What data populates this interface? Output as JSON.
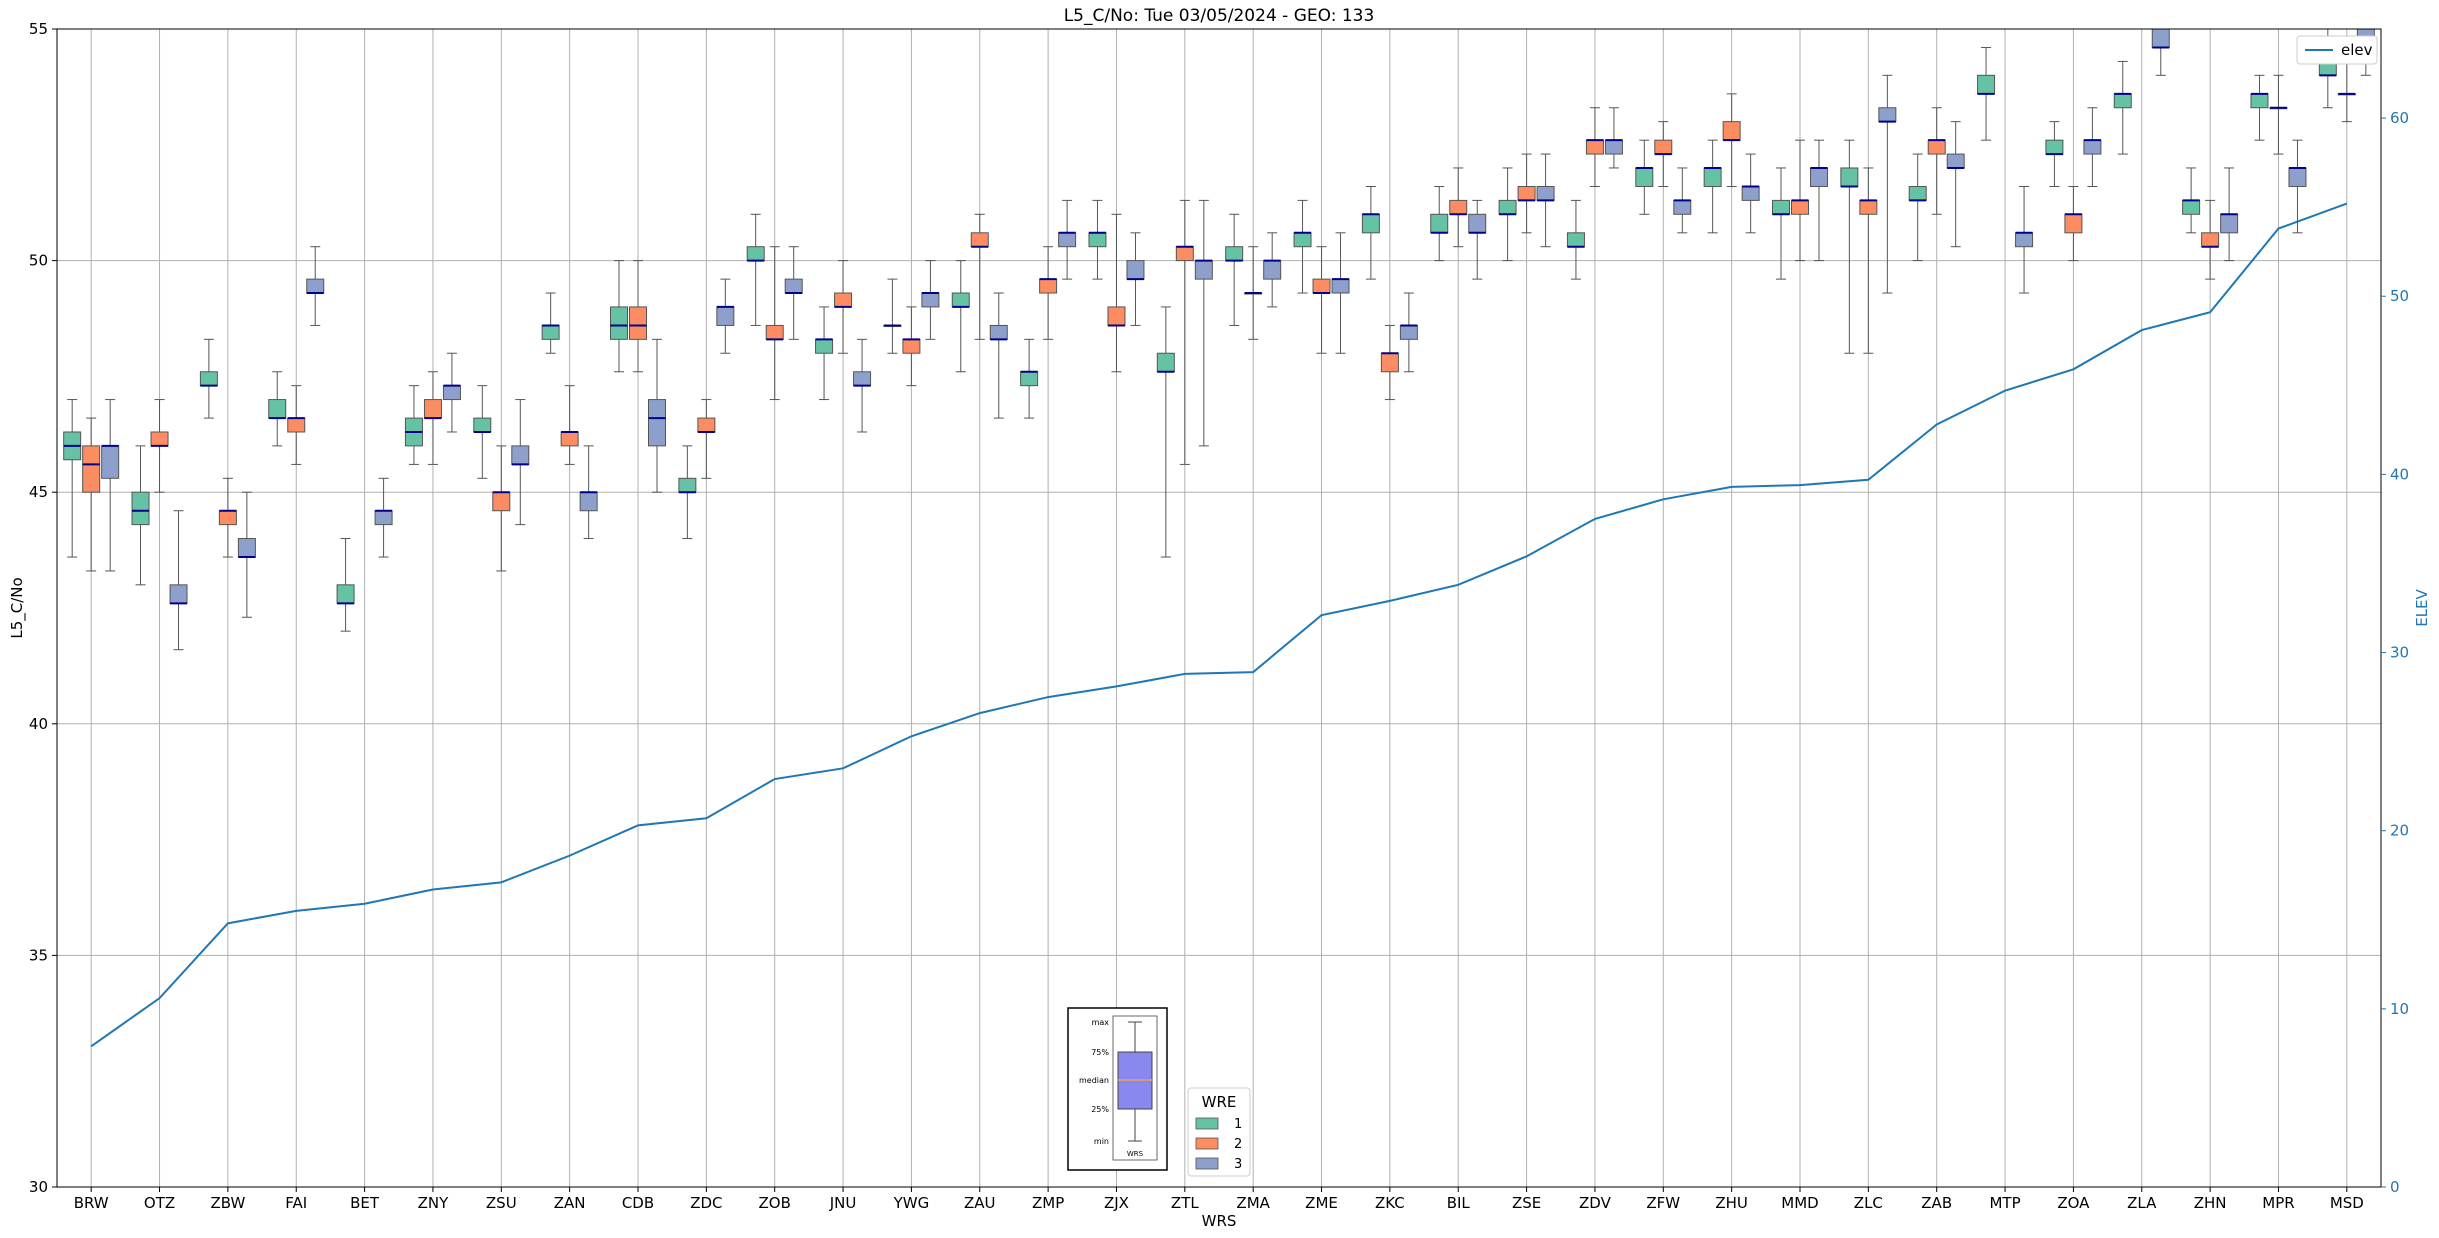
{
  "chart_data": {
    "type": "box",
    "title": "L5_C/No: Tue 03/05/2024 - GEO: 133",
    "xlabel": "WRS",
    "ylabel": "L5_C/No",
    "y2label": "ELEV",
    "ylim": [
      30,
      55
    ],
    "y2lim": [
      0,
      65
    ],
    "yticks": [
      30,
      35,
      40,
      45,
      50,
      55
    ],
    "y2ticks": [
      0,
      10,
      20,
      30,
      40,
      50,
      60
    ],
    "grid": true,
    "categories": [
      "BRW",
      "OTZ",
      "ZBW",
      "FAI",
      "BET",
      "ZNY",
      "ZSU",
      "ZAN",
      "CDB",
      "ZDC",
      "ZOB",
      "JNU",
      "YWG",
      "ZAU",
      "ZMP",
      "ZJX",
      "ZTL",
      "ZMA",
      "ZME",
      "ZKC",
      "BIL",
      "ZSE",
      "ZDV",
      "ZFW",
      "ZHU",
      "MMD",
      "ZLC",
      "ZAB",
      "MTP",
      "ZOA",
      "ZLA",
      "ZHN",
      "MPR",
      "MSD"
    ],
    "legend": {
      "title": "WRE",
      "placement": "bottom-center",
      "entries": [
        {
          "name": "1",
          "color": "#66c2a5"
        },
        {
          "name": "2",
          "color": "#fc8d62"
        },
        {
          "name": "3",
          "color": "#8da0cb"
        }
      ]
    },
    "line_legend": {
      "name": "elev",
      "color": "#1f77b4",
      "placement": "top-right"
    },
    "box_key": {
      "labels": [
        "max",
        "75%",
        "median",
        "25%",
        "min"
      ],
      "xlabel": "WRS"
    },
    "elev": [
      7.9,
      10.6,
      14.8,
      15.5,
      15.9,
      16.7,
      17.1,
      18.6,
      20.3,
      20.7,
      22.9,
      23.5,
      25.3,
      26.6,
      27.5,
      28.1,
      28.8,
      28.9,
      32.1,
      32.9,
      33.8,
      35.4,
      37.5,
      38.6,
      39.3,
      39.4,
      39.7,
      42.8,
      44.7,
      45.9,
      48.1,
      49.1,
      53.8,
      55.2
    ],
    "boxes": [
      {
        "cat": "BRW",
        "wre": "1",
        "min": 43.6,
        "q1": 45.7,
        "median": 46.0,
        "q3": 46.3,
        "max": 47.0
      },
      {
        "cat": "BRW",
        "wre": "2",
        "min": 43.3,
        "q1": 45.0,
        "median": 45.6,
        "q3": 46.0,
        "max": 46.6
      },
      {
        "cat": "BRW",
        "wre": "3",
        "min": 43.3,
        "q1": 45.3,
        "median": 46.0,
        "q3": 46.0,
        "max": 47.0
      },
      {
        "cat": "OTZ",
        "wre": "1",
        "min": 43.0,
        "q1": 44.3,
        "median": 44.6,
        "q3": 45.0,
        "max": 46.0
      },
      {
        "cat": "OTZ",
        "wre": "2",
        "min": 45.0,
        "q1": 46.0,
        "median": 46.0,
        "q3": 46.3,
        "max": 47.0
      },
      {
        "cat": "OTZ",
        "wre": "3",
        "min": 41.6,
        "q1": 42.6,
        "median": 42.6,
        "q3": 43.0,
        "max": 44.6
      },
      {
        "cat": "ZBW",
        "wre": "1",
        "min": 46.6,
        "q1": 47.3,
        "median": 47.3,
        "q3": 47.6,
        "max": 48.3
      },
      {
        "cat": "ZBW",
        "wre": "2",
        "min": 43.6,
        "q1": 44.3,
        "median": 44.6,
        "q3": 44.6,
        "max": 45.3
      },
      {
        "cat": "ZBW",
        "wre": "3",
        "min": 42.3,
        "q1": 43.6,
        "median": 43.6,
        "q3": 44.0,
        "max": 45.0
      },
      {
        "cat": "FAI",
        "wre": "1",
        "min": 46.0,
        "q1": 46.6,
        "median": 46.6,
        "q3": 47.0,
        "max": 47.6
      },
      {
        "cat": "FAI",
        "wre": "2",
        "min": 45.6,
        "q1": 46.3,
        "median": 46.6,
        "q3": 46.6,
        "max": 47.3
      },
      {
        "cat": "FAI",
        "wre": "3",
        "min": 48.6,
        "q1": 49.3,
        "median": 49.3,
        "q3": 49.6,
        "max": 50.3
      },
      {
        "cat": "BET",
        "wre": "1",
        "min": 42.0,
        "q1": 42.6,
        "median": 42.6,
        "q3": 43.0,
        "max": 44.0
      },
      {
        "cat": "BET",
        "wre": "3",
        "min": 43.6,
        "q1": 44.3,
        "median": 44.6,
        "q3": 44.6,
        "max": 45.3
      },
      {
        "cat": "ZNY",
        "wre": "1",
        "min": 45.6,
        "q1": 46.0,
        "median": 46.3,
        "q3": 46.6,
        "max": 47.3
      },
      {
        "cat": "ZNY",
        "wre": "2",
        "min": 45.6,
        "q1": 46.6,
        "median": 46.6,
        "q3": 47.0,
        "max": 47.6
      },
      {
        "cat": "ZNY",
        "wre": "3",
        "min": 46.3,
        "q1": 47.0,
        "median": 47.3,
        "q3": 47.3,
        "max": 48.0
      },
      {
        "cat": "ZSU",
        "wre": "1",
        "min": 45.3,
        "q1": 46.3,
        "median": 46.3,
        "q3": 46.6,
        "max": 47.3
      },
      {
        "cat": "ZSU",
        "wre": "2",
        "min": 43.3,
        "q1": 44.6,
        "median": 45.0,
        "q3": 45.0,
        "max": 46.0
      },
      {
        "cat": "ZSU",
        "wre": "3",
        "min": 44.3,
        "q1": 45.6,
        "median": 45.6,
        "q3": 46.0,
        "max": 47.0
      },
      {
        "cat": "ZAN",
        "wre": "1",
        "min": 48.0,
        "q1": 48.3,
        "median": 48.6,
        "q3": 48.6,
        "max": 49.3
      },
      {
        "cat": "ZAN",
        "wre": "2",
        "min": 45.6,
        "q1": 46.0,
        "median": 46.3,
        "q3": 46.3,
        "max": 47.3
      },
      {
        "cat": "ZAN",
        "wre": "3",
        "min": 44.0,
        "q1": 44.6,
        "median": 45.0,
        "q3": 45.0,
        "max": 46.0
      },
      {
        "cat": "CDB",
        "wre": "1",
        "min": 47.6,
        "q1": 48.3,
        "median": 48.6,
        "q3": 49.0,
        "max": 50.0
      },
      {
        "cat": "CDB",
        "wre": "2",
        "min": 47.6,
        "q1": 48.3,
        "median": 48.6,
        "q3": 49.0,
        "max": 50.0
      },
      {
        "cat": "CDB",
        "wre": "3",
        "min": 45.0,
        "q1": 46.0,
        "median": 46.6,
        "q3": 47.0,
        "max": 48.3
      },
      {
        "cat": "ZDC",
        "wre": "1",
        "min": 44.0,
        "q1": 45.0,
        "median": 45.0,
        "q3": 45.3,
        "max": 46.0
      },
      {
        "cat": "ZDC",
        "wre": "2",
        "min": 45.3,
        "q1": 46.3,
        "median": 46.3,
        "q3": 46.6,
        "max": 47.0
      },
      {
        "cat": "ZDC",
        "wre": "3",
        "min": 48.0,
        "q1": 48.6,
        "median": 49.0,
        "q3": 49.0,
        "max": 49.6
      },
      {
        "cat": "ZOB",
        "wre": "1",
        "min": 48.6,
        "q1": 50.0,
        "median": 50.0,
        "q3": 50.3,
        "max": 51.0
      },
      {
        "cat": "ZOB",
        "wre": "2",
        "min": 47.0,
        "q1": 48.3,
        "median": 48.3,
        "q3": 48.6,
        "max": 50.3
      },
      {
        "cat": "ZOB",
        "wre": "3",
        "min": 48.3,
        "q1": 49.3,
        "median": 49.3,
        "q3": 49.6,
        "max": 50.3
      },
      {
        "cat": "JNU",
        "wre": "1",
        "min": 47.0,
        "q1": 48.0,
        "median": 48.3,
        "q3": 48.3,
        "max": 49.0
      },
      {
        "cat": "JNU",
        "wre": "2",
        "min": 48.0,
        "q1": 49.0,
        "median": 49.0,
        "q3": 49.3,
        "max": 50.0
      },
      {
        "cat": "JNU",
        "wre": "3",
        "min": 46.3,
        "q1": 47.3,
        "median": 47.3,
        "q3": 47.6,
        "max": 48.3
      },
      {
        "cat": "YWG",
        "wre": "1",
        "min": 48.0,
        "q1": 48.6,
        "median": 48.6,
        "q3": 48.6,
        "max": 49.6
      },
      {
        "cat": "YWG",
        "wre": "2",
        "min": 47.3,
        "q1": 48.0,
        "median": 48.3,
        "q3": 48.3,
        "max": 49.0
      },
      {
        "cat": "YWG",
        "wre": "3",
        "min": 48.3,
        "q1": 49.0,
        "median": 49.3,
        "q3": 49.3,
        "max": 50.0
      },
      {
        "cat": "ZAU",
        "wre": "1",
        "min": 47.6,
        "q1": 49.0,
        "median": 49.0,
        "q3": 49.3,
        "max": 50.0
      },
      {
        "cat": "ZAU",
        "wre": "2",
        "min": 48.3,
        "q1": 50.3,
        "median": 50.3,
        "q3": 50.6,
        "max": 51.0
      },
      {
        "cat": "ZAU",
        "wre": "3",
        "min": 46.6,
        "q1": 48.3,
        "median": 48.3,
        "q3": 48.6,
        "max": 49.3
      },
      {
        "cat": "ZMP",
        "wre": "1",
        "min": 46.6,
        "q1": 47.3,
        "median": 47.6,
        "q3": 47.6,
        "max": 48.3
      },
      {
        "cat": "ZMP",
        "wre": "2",
        "min": 48.3,
        "q1": 49.3,
        "median": 49.6,
        "q3": 49.6,
        "max": 50.3
      },
      {
        "cat": "ZMP",
        "wre": "3",
        "min": 49.6,
        "q1": 50.3,
        "median": 50.6,
        "q3": 50.6,
        "max": 51.3
      },
      {
        "cat": "ZJX",
        "wre": "1",
        "min": 49.6,
        "q1": 50.3,
        "median": 50.6,
        "q3": 50.6,
        "max": 51.3
      },
      {
        "cat": "ZJX",
        "wre": "2",
        "min": 47.6,
        "q1": 48.6,
        "median": 48.6,
        "q3": 49.0,
        "max": 51.0
      },
      {
        "cat": "ZJX",
        "wre": "3",
        "min": 48.6,
        "q1": 49.6,
        "median": 49.6,
        "q3": 50.0,
        "max": 50.6
      },
      {
        "cat": "ZTL",
        "wre": "1",
        "min": 43.6,
        "q1": 47.6,
        "median": 47.6,
        "q3": 48.0,
        "max": 49.0
      },
      {
        "cat": "ZTL",
        "wre": "2",
        "min": 45.6,
        "q1": 50.0,
        "median": 50.3,
        "q3": 50.3,
        "max": 51.3
      },
      {
        "cat": "ZTL",
        "wre": "3",
        "min": 46.0,
        "q1": 49.6,
        "median": 50.0,
        "q3": 50.0,
        "max": 51.3
      },
      {
        "cat": "ZMA",
        "wre": "1",
        "min": 48.6,
        "q1": 50.0,
        "median": 50.0,
        "q3": 50.3,
        "max": 51.0
      },
      {
        "cat": "ZMA",
        "wre": "2",
        "min": 48.3,
        "q1": 49.3,
        "median": 49.3,
        "q3": 49.3,
        "max": 50.3
      },
      {
        "cat": "ZMA",
        "wre": "3",
        "min": 49.0,
        "q1": 49.6,
        "median": 50.0,
        "q3": 50.0,
        "max": 50.6
      },
      {
        "cat": "ZME",
        "wre": "1",
        "min": 49.3,
        "q1": 50.3,
        "median": 50.6,
        "q3": 50.6,
        "max": 51.3
      },
      {
        "cat": "ZME",
        "wre": "2",
        "min": 48.0,
        "q1": 49.3,
        "median": 49.3,
        "q3": 49.6,
        "max": 50.3
      },
      {
        "cat": "ZME",
        "wre": "3",
        "min": 48.0,
        "q1": 49.3,
        "median": 49.6,
        "q3": 49.6,
        "max": 50.6
      },
      {
        "cat": "ZKC",
        "wre": "1",
        "min": 49.6,
        "q1": 50.6,
        "median": 51.0,
        "q3": 51.0,
        "max": 51.6
      },
      {
        "cat": "ZKC",
        "wre": "2",
        "min": 47.0,
        "q1": 47.6,
        "median": 48.0,
        "q3": 48.0,
        "max": 48.6
      },
      {
        "cat": "ZKC",
        "wre": "3",
        "min": 47.6,
        "q1": 48.3,
        "median": 48.6,
        "q3": 48.6,
        "max": 49.3
      },
      {
        "cat": "BIL",
        "wre": "1",
        "min": 50.0,
        "q1": 50.6,
        "median": 50.6,
        "q3": 51.0,
        "max": 51.6
      },
      {
        "cat": "BIL",
        "wre": "2",
        "min": 50.3,
        "q1": 51.0,
        "median": 51.0,
        "q3": 51.3,
        "max": 52.0
      },
      {
        "cat": "BIL",
        "wre": "3",
        "min": 49.6,
        "q1": 50.6,
        "median": 50.6,
        "q3": 51.0,
        "max": 51.3
      },
      {
        "cat": "ZSE",
        "wre": "1",
        "min": 50.0,
        "q1": 51.0,
        "median": 51.0,
        "q3": 51.3,
        "max": 52.0
      },
      {
        "cat": "ZSE",
        "wre": "2",
        "min": 50.6,
        "q1": 51.3,
        "median": 51.3,
        "q3": 51.6,
        "max": 52.3
      },
      {
        "cat": "ZSE",
        "wre": "3",
        "min": 50.3,
        "q1": 51.3,
        "median": 51.3,
        "q3": 51.6,
        "max": 52.3
      },
      {
        "cat": "ZDV",
        "wre": "1",
        "min": 49.6,
        "q1": 50.3,
        "median": 50.3,
        "q3": 50.6,
        "max": 51.3
      },
      {
        "cat": "ZDV",
        "wre": "2",
        "min": 51.6,
        "q1": 52.3,
        "median": 52.6,
        "q3": 52.6,
        "max": 53.3
      },
      {
        "cat": "ZDV",
        "wre": "3",
        "min": 52.0,
        "q1": 52.3,
        "median": 52.6,
        "q3": 52.6,
        "max": 53.3
      },
      {
        "cat": "ZFW",
        "wre": "1",
        "min": 51.0,
        "q1": 51.6,
        "median": 52.0,
        "q3": 52.0,
        "max": 52.6
      },
      {
        "cat": "ZFW",
        "wre": "2",
        "min": 51.6,
        "q1": 52.3,
        "median": 52.3,
        "q3": 52.6,
        "max": 53.0
      },
      {
        "cat": "ZFW",
        "wre": "3",
        "min": 50.6,
        "q1": 51.0,
        "median": 51.3,
        "q3": 51.3,
        "max": 52.0
      },
      {
        "cat": "ZHU",
        "wre": "1",
        "min": 50.6,
        "q1": 51.6,
        "median": 52.0,
        "q3": 52.0,
        "max": 52.6
      },
      {
        "cat": "ZHU",
        "wre": "2",
        "min": 51.6,
        "q1": 52.6,
        "median": 52.6,
        "q3": 53.0,
        "max": 53.6
      },
      {
        "cat": "ZHU",
        "wre": "3",
        "min": 50.6,
        "q1": 51.3,
        "median": 51.6,
        "q3": 51.6,
        "max": 52.3
      },
      {
        "cat": "MMD",
        "wre": "1",
        "min": 49.6,
        "q1": 51.0,
        "median": 51.0,
        "q3": 51.3,
        "max": 52.0
      },
      {
        "cat": "MMD",
        "wre": "2",
        "min": 50.0,
        "q1": 51.0,
        "median": 51.3,
        "q3": 51.3,
        "max": 52.6
      },
      {
        "cat": "MMD",
        "wre": "3",
        "min": 50.0,
        "q1": 51.6,
        "median": 52.0,
        "q3": 52.0,
        "max": 52.6
      },
      {
        "cat": "ZLC",
        "wre": "1",
        "min": 48.0,
        "q1": 51.6,
        "median": 51.6,
        "q3": 52.0,
        "max": 52.6
      },
      {
        "cat": "ZLC",
        "wre": "2",
        "min": 48.0,
        "q1": 51.0,
        "median": 51.3,
        "q3": 51.3,
        "max": 52.0
      },
      {
        "cat": "ZLC",
        "wre": "3",
        "min": 49.3,
        "q1": 53.0,
        "median": 53.0,
        "q3": 53.3,
        "max": 54.0
      },
      {
        "cat": "ZAB",
        "wre": "1",
        "min": 50.0,
        "q1": 51.3,
        "median": 51.3,
        "q3": 51.6,
        "max": 52.3
      },
      {
        "cat": "ZAB",
        "wre": "2",
        "min": 51.0,
        "q1": 52.3,
        "median": 52.6,
        "q3": 52.6,
        "max": 53.3
      },
      {
        "cat": "ZAB",
        "wre": "3",
        "min": 50.3,
        "q1": 52.0,
        "median": 52.0,
        "q3": 52.3,
        "max": 53.0
      },
      {
        "cat": "MTP",
        "wre": "1",
        "min": 52.6,
        "q1": 53.6,
        "median": 53.6,
        "q3": 54.0,
        "max": 54.6
      },
      {
        "cat": "MTP",
        "wre": "3",
        "min": 49.3,
        "q1": 50.3,
        "median": 50.6,
        "q3": 50.6,
        "max": 51.6
      },
      {
        "cat": "ZOA",
        "wre": "1",
        "min": 51.6,
        "q1": 52.3,
        "median": 52.3,
        "q3": 52.6,
        "max": 53.0
      },
      {
        "cat": "ZOA",
        "wre": "2",
        "min": 50.0,
        "q1": 50.6,
        "median": 51.0,
        "q3": 51.0,
        "max": 51.6
      },
      {
        "cat": "ZOA",
        "wre": "3",
        "min": 51.6,
        "q1": 52.3,
        "median": 52.6,
        "q3": 52.6,
        "max": 53.3
      },
      {
        "cat": "ZLA",
        "wre": "1",
        "min": 52.3,
        "q1": 53.3,
        "median": 53.6,
        "q3": 53.6,
        "max": 54.3
      },
      {
        "cat": "ZLA",
        "wre": "3",
        "min": 54.0,
        "q1": 54.6,
        "median": 54.6,
        "q3": 55.0,
        "max": 55.0
      },
      {
        "cat": "ZHN",
        "wre": "1",
        "min": 50.6,
        "q1": 51.0,
        "median": 51.3,
        "q3": 51.3,
        "max": 52.0
      },
      {
        "cat": "ZHN",
        "wre": "2",
        "min": 49.6,
        "q1": 50.3,
        "median": 50.3,
        "q3": 50.6,
        "max": 51.3
      },
      {
        "cat": "ZHN",
        "wre": "3",
        "min": 50.0,
        "q1": 50.6,
        "median": 51.0,
        "q3": 51.0,
        "max": 52.0
      },
      {
        "cat": "MPR",
        "wre": "1",
        "min": 52.6,
        "q1": 53.3,
        "median": 53.6,
        "q3": 53.6,
        "max": 54.0
      },
      {
        "cat": "MPR",
        "wre": "2",
        "min": 52.3,
        "q1": 53.3,
        "median": 53.3,
        "q3": 53.3,
        "max": 54.0
      },
      {
        "cat": "MPR",
        "wre": "3",
        "min": 50.6,
        "q1": 51.6,
        "median": 52.0,
        "q3": 52.0,
        "max": 52.6
      },
      {
        "cat": "MSD",
        "wre": "1",
        "min": 53.3,
        "q1": 54.0,
        "median": 54.0,
        "q3": 54.3,
        "max": 55.0
      },
      {
        "cat": "MSD",
        "wre": "2",
        "min": 53.0,
        "q1": 53.6,
        "median": 53.6,
        "q3": 53.6,
        "max": 54.3
      },
      {
        "cat": "MSD",
        "wre": "3",
        "min": 54.0,
        "q1": 54.6,
        "median": 54.6,
        "q3": 55.0,
        "max": 55.0
      }
    ]
  }
}
